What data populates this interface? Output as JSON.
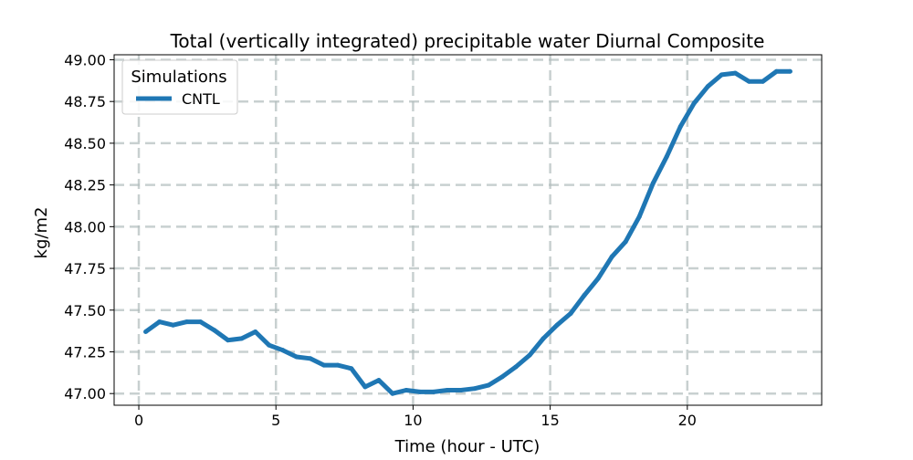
{
  "chart_data": {
    "type": "line",
    "title": "Total (vertically integrated) precipitable water Diurnal Composite",
    "xlabel": "Time (hour - UTC)",
    "ylabel": "kg/m2",
    "xlim": [
      -0.9,
      24.9
    ],
    "ylim": [
      46.93,
      49.03
    ],
    "xticks": [
      0,
      5,
      10,
      15,
      20
    ],
    "xtick_labels": [
      "0",
      "5",
      "10",
      "15",
      "20"
    ],
    "yticks": [
      47.0,
      47.25,
      47.5,
      47.75,
      48.0,
      48.25,
      48.5,
      48.75,
      49.0
    ],
    "ytick_labels": [
      "47.00",
      "47.25",
      "47.50",
      "47.75",
      "48.00",
      "48.25",
      "48.50",
      "48.75",
      "49.00"
    ],
    "grid": true,
    "legend": {
      "title": "Simulations",
      "position": "top-left"
    },
    "series": [
      {
        "name": "CNTL",
        "color": "#1f77b4",
        "x": [
          0.25,
          0.75,
          1.25,
          1.75,
          2.25,
          2.75,
          3.25,
          3.75,
          4.25,
          4.75,
          5.25,
          5.75,
          6.25,
          6.75,
          7.25,
          7.75,
          8.25,
          8.75,
          9.25,
          9.75,
          10.25,
          10.75,
          11.25,
          11.75,
          12.25,
          12.75,
          13.25,
          13.75,
          14.25,
          14.75,
          15.25,
          15.75,
          16.25,
          16.75,
          17.25,
          17.75,
          18.25,
          18.75,
          19.25,
          19.75,
          20.25,
          20.75,
          21.25,
          21.75,
          22.25,
          22.75,
          23.25,
          23.75
        ],
        "values": [
          47.37,
          47.43,
          47.41,
          47.43,
          47.43,
          47.38,
          47.32,
          47.33,
          47.37,
          47.29,
          47.26,
          47.22,
          47.21,
          47.17,
          47.17,
          47.15,
          47.04,
          47.08,
          47.0,
          47.02,
          47.01,
          47.01,
          47.02,
          47.02,
          47.03,
          47.05,
          47.1,
          47.16,
          47.23,
          47.33,
          47.41,
          47.48,
          47.59,
          47.69,
          47.82,
          47.91,
          48.06,
          48.26,
          48.42,
          48.6,
          48.74,
          48.84,
          48.91,
          48.92,
          48.87,
          48.87,
          48.93,
          48.93
        ]
      }
    ]
  }
}
